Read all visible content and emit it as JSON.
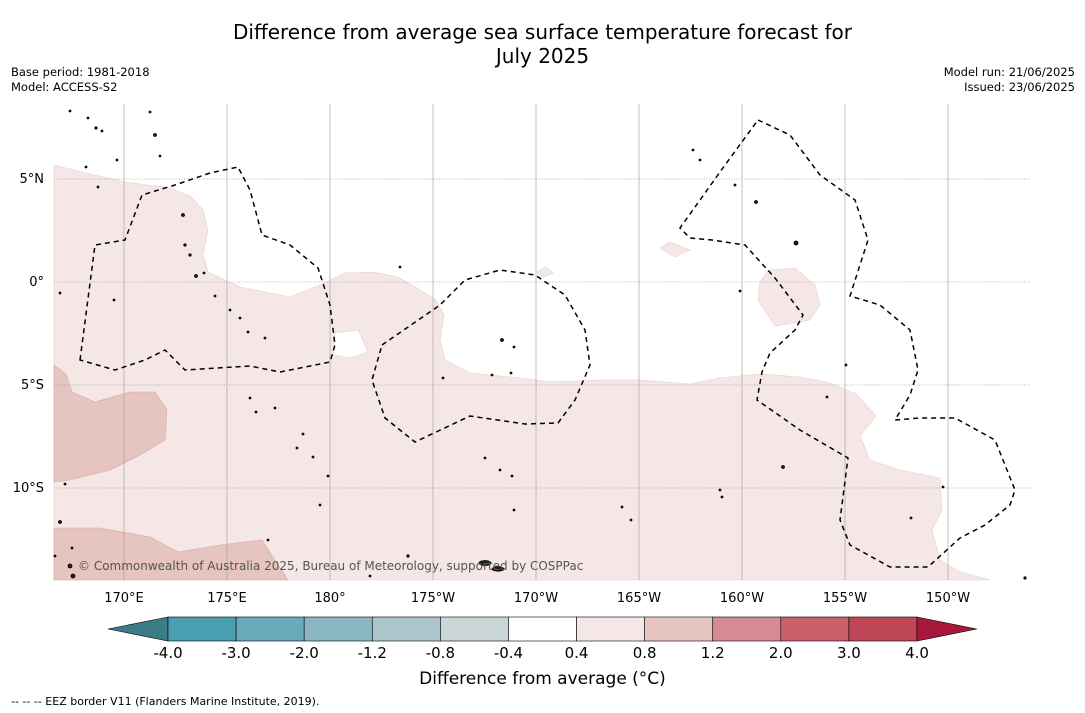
{
  "title_line1": "Difference from average sea surface temperature forecast for",
  "title_line2": "July 2025",
  "base_period": "Base period: 1981-2018",
  "model": "Model: ACCESS-S2",
  "model_run": "Model run: 21/06/2025",
  "issued": "Issued: 23/06/2025",
  "lat_labels": [
    "5°N",
    "0°",
    "5°S",
    "10°S"
  ],
  "lon_labels": [
    "170°E",
    "175°E",
    "180°",
    "175°W",
    "170°W",
    "165°W",
    "160°W",
    "155°W",
    "150°W"
  ],
  "credit": "© Commonwealth of Australia 2025, Bureau of Meteorology, supported by COSPPac",
  "colorbar": {
    "ticks": [
      "-4.0",
      "-3.0",
      "-2.0",
      "-1.2",
      "-0.8",
      "-0.4",
      "0.4",
      "0.8",
      "1.2",
      "2.0",
      "3.0",
      "4.0"
    ],
    "colors": [
      "#3b7d87",
      "#4aa0b2",
      "#6aaab9",
      "#8ab7c2",
      "#aac6cb",
      "#cbd6d8",
      "#ffffff",
      "#f4e7e6",
      "#e6c4c0",
      "#d68a92",
      "#c9606c",
      "#bf4757",
      "#a8173a"
    ],
    "label": "Difference from average (°C)"
  },
  "footer": "-- -- -- EEZ border V11 (Flanders Marine Institute, 2019)."
}
